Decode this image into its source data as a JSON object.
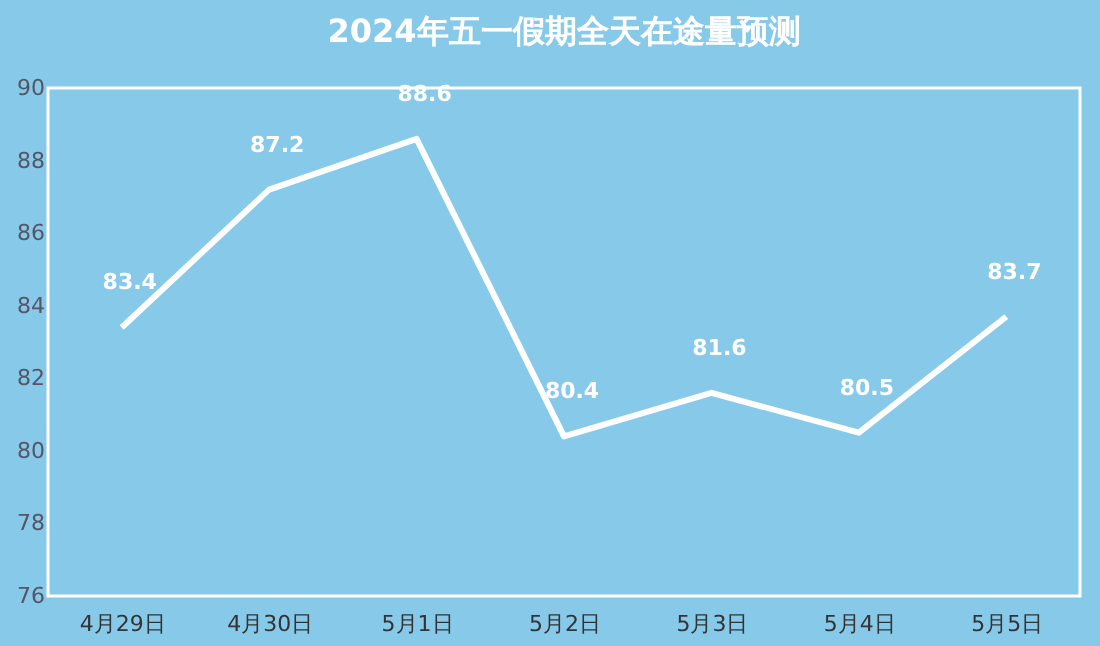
{
  "chart_data": {
    "type": "line",
    "title": "2024年五一假期全天在途量预测",
    "categories": [
      "4月29日",
      "4月30日",
      "5月1日",
      "5月2日",
      "5月3日",
      "5月4日",
      "5月5日"
    ],
    "series": [
      {
        "color": "#ffffff",
        "values": [
          83.4,
          87.2,
          88.6,
          80.4,
          81.6,
          80.5,
          83.7
        ]
      }
    ],
    "ylim": [
      76,
      90
    ],
    "yticks": [
      76,
      78,
      80,
      82,
      84,
      86,
      88,
      90
    ],
    "grid": false,
    "legend": false,
    "data_labels": true,
    "marker": "none",
    "line_style": "solid"
  }
}
